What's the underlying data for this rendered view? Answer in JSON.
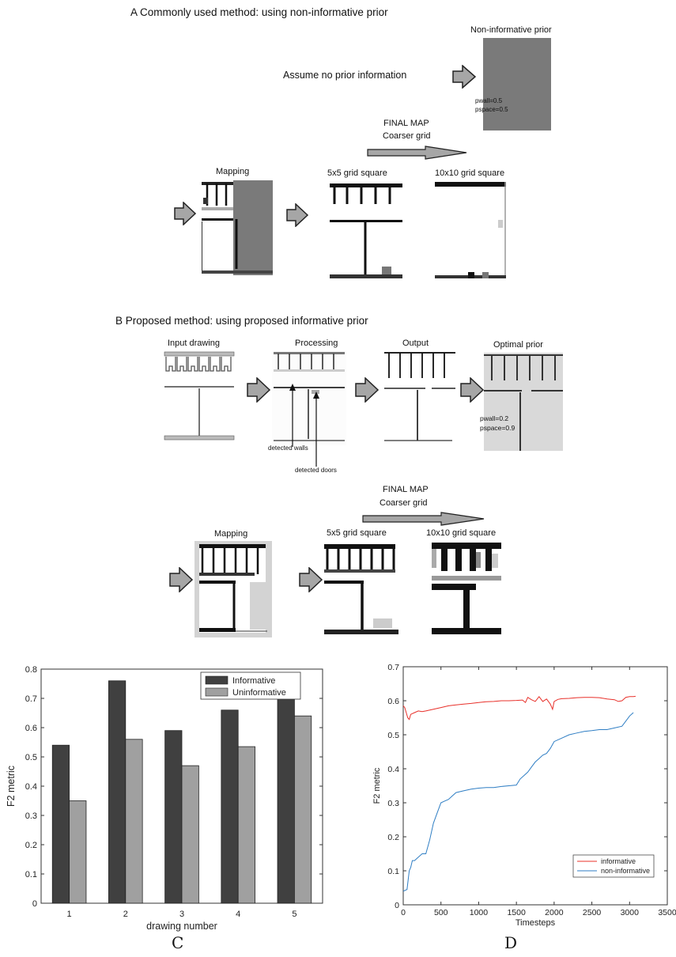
{
  "section_a": {
    "title": "A Commonly used method: using non-informative prior",
    "prior_label": "Non-informative prior",
    "assume_text": "Assume no prior information",
    "pwall": "pwall=0.5",
    "pspace": "pspace=0.5",
    "final_map": "FINAL MAP",
    "coarser": "Coarser grid",
    "mapping": "Mapping",
    "grid5": "5x5 grid square",
    "grid10": "10x10 grid square"
  },
  "section_b": {
    "title": "B Proposed method: using proposed informative prior",
    "input_drawing": "Input drawing",
    "processing": "Processing",
    "output": "Output",
    "optimal_prior": "Optimal prior",
    "pwall": "pwall=0.2",
    "pspace": "pspace=0.9",
    "detected_walls": "detected walls",
    "detected_doors": "detected doors",
    "final_map": "FINAL MAP",
    "coarser": "Coarser grid",
    "mapping": "Mapping",
    "grid5": "5x5 grid square",
    "grid10": "10x10 grid square"
  },
  "colors": {
    "prior_gray": "#7a7a7a",
    "arrow_fill": "#a6a6a6",
    "informative_bar": "#404040",
    "uninformative_bar": "#a0a0a0",
    "informative_line": "#e8302a",
    "noninformative_line": "#2f7ec4"
  },
  "panel_labels": {
    "c": "C",
    "d": "D"
  },
  "chart_data": [
    {
      "type": "bar",
      "categories": [
        "1",
        "2",
        "3",
        "4",
        "5"
      ],
      "series": [
        {
          "name": "Informative",
          "values": [
            0.54,
            0.76,
            0.59,
            0.66,
            0.77
          ]
        },
        {
          "name": "Uninformative",
          "values": [
            0.35,
            0.56,
            0.47,
            0.535,
            0.64
          ]
        }
      ],
      "xlabel": "drawing number",
      "ylabel": "F2 metric",
      "ylim": [
        0,
        0.8
      ],
      "yticks": [
        "0",
        "0.1",
        "0.2",
        "0.3",
        "0.4",
        "0.5",
        "0.6",
        "0.7",
        "0.8"
      ],
      "legend": "top-right",
      "grid": false
    },
    {
      "type": "line",
      "xlabel": "Timesteps",
      "ylabel": "F2 metric",
      "xlim": [
        0,
        3500
      ],
      "ylim": [
        0,
        0.7
      ],
      "xticks": [
        "0",
        "500",
        "1000",
        "1500",
        "2000",
        "2500",
        "3000",
        "3500"
      ],
      "yticks": [
        "0",
        "0.1",
        "0.2",
        "0.3",
        "0.4",
        "0.5",
        "0.6",
        "0.7"
      ],
      "legend": "bottom-right",
      "grid": false,
      "series": [
        {
          "name": "informative",
          "x": [
            0,
            20,
            40,
            60,
            80,
            100,
            150,
            200,
            250,
            300,
            400,
            500,
            600,
            700,
            800,
            900,
            1000,
            1100,
            1200,
            1300,
            1400,
            1500,
            1580,
            1620,
            1650,
            1700,
            1750,
            1800,
            1850,
            1900,
            1950,
            1980,
            2000,
            2050,
            2100,
            2200,
            2300,
            2400,
            2500,
            2600,
            2700,
            2800,
            2850,
            2900,
            2950,
            3000,
            3050,
            3080
          ],
          "y": [
            0.585,
            0.58,
            0.565,
            0.55,
            0.545,
            0.56,
            0.565,
            0.57,
            0.568,
            0.57,
            0.575,
            0.58,
            0.585,
            0.588,
            0.59,
            0.592,
            0.595,
            0.597,
            0.598,
            0.6,
            0.6,
            0.601,
            0.602,
            0.595,
            0.61,
            0.603,
            0.598,
            0.612,
            0.598,
            0.605,
            0.59,
            0.575,
            0.598,
            0.604,
            0.606,
            0.607,
            0.609,
            0.61,
            0.61,
            0.609,
            0.605,
            0.603,
            0.598,
            0.6,
            0.61,
            0.612,
            0.612,
            0.613
          ]
        },
        {
          "name": "non-informative",
          "x": [
            0,
            50,
            80,
            100,
            120,
            150,
            200,
            250,
            300,
            350,
            400,
            450,
            500,
            550,
            600,
            650,
            700,
            800,
            900,
            1000,
            1100,
            1200,
            1300,
            1400,
            1500,
            1550,
            1600,
            1650,
            1700,
            1750,
            1800,
            1850,
            1900,
            1950,
            2000,
            2100,
            2200,
            2300,
            2400,
            2500,
            2600,
            2700,
            2800,
            2900,
            2950,
            3000,
            3050
          ],
          "y": [
            0.04,
            0.045,
            0.1,
            0.11,
            0.13,
            0.13,
            0.14,
            0.15,
            0.15,
            0.19,
            0.24,
            0.27,
            0.3,
            0.305,
            0.31,
            0.32,
            0.33,
            0.335,
            0.34,
            0.343,
            0.345,
            0.345,
            0.348,
            0.35,
            0.352,
            0.37,
            0.38,
            0.39,
            0.405,
            0.42,
            0.43,
            0.44,
            0.445,
            0.46,
            0.48,
            0.49,
            0.5,
            0.505,
            0.51,
            0.512,
            0.515,
            0.515,
            0.52,
            0.525,
            0.54,
            0.555,
            0.565
          ]
        }
      ]
    }
  ]
}
